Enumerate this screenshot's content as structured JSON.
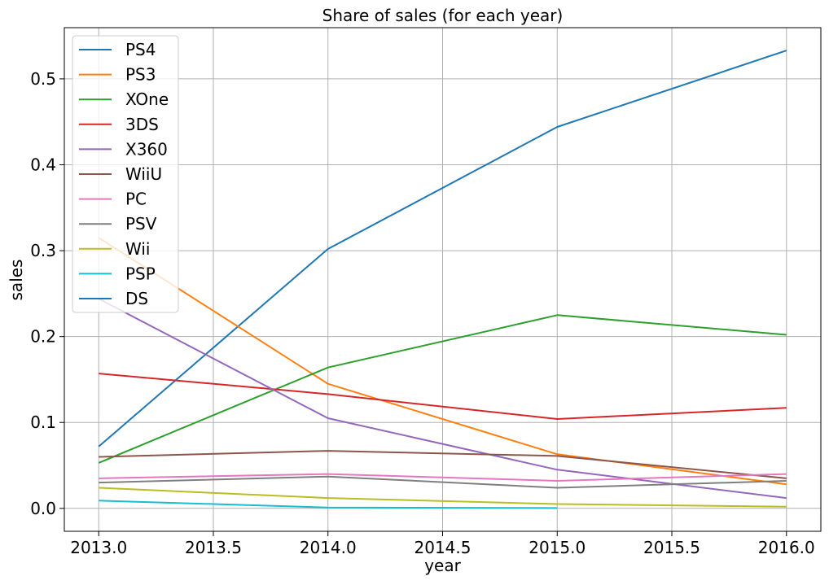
{
  "chart_data": {
    "type": "line",
    "title": "Share of sales (for each year)",
    "xlabel": "year",
    "ylabel": "sales",
    "xlim": [
      2012.85,
      2016.15
    ],
    "ylim": [
      -0.0267,
      0.5596
    ],
    "x_ticks": [
      "2013.0",
      "2013.5",
      "2014.0",
      "2014.5",
      "2015.0",
      "2015.5",
      "2016.0"
    ],
    "y_ticks": [
      "0.0",
      "0.1",
      "0.2",
      "0.3",
      "0.4",
      "0.5"
    ],
    "grid": true,
    "legend_position": "upper-left",
    "series": [
      {
        "name": "PS4",
        "color": "#1f77b4",
        "x": [
          2013,
          2014,
          2015,
          2016
        ],
        "values": [
          0.072,
          0.302,
          0.444,
          0.533
        ]
      },
      {
        "name": "PS3",
        "color": "#ff7f0e",
        "x": [
          2013,
          2014,
          2015,
          2016
        ],
        "values": [
          0.315,
          0.145,
          0.063,
          0.028
        ]
      },
      {
        "name": "XOne",
        "color": "#2ca02c",
        "x": [
          2013,
          2014,
          2015,
          2016
        ],
        "values": [
          0.053,
          0.164,
          0.225,
          0.202
        ]
      },
      {
        "name": "3DS",
        "color": "#d62728",
        "x": [
          2013,
          2014,
          2015,
          2016
        ],
        "values": [
          0.157,
          0.133,
          0.104,
          0.117
        ]
      },
      {
        "name": "X360",
        "color": "#9467bd",
        "x": [
          2013,
          2014,
          2015,
          2016
        ],
        "values": [
          0.244,
          0.105,
          0.045,
          0.012
        ]
      },
      {
        "name": "WiiU",
        "color": "#8c564b",
        "x": [
          2013,
          2014,
          2015,
          2016
        ],
        "values": [
          0.06,
          0.067,
          0.061,
          0.035
        ]
      },
      {
        "name": "PC",
        "color": "#e377c2",
        "x": [
          2013,
          2014,
          2015,
          2016
        ],
        "values": [
          0.035,
          0.04,
          0.032,
          0.04
        ]
      },
      {
        "name": "PSV",
        "color": "#7f7f7f",
        "x": [
          2013,
          2014,
          2015,
          2016
        ],
        "values": [
          0.03,
          0.037,
          0.024,
          0.032
        ]
      },
      {
        "name": "Wii",
        "color": "#bcbd22",
        "x": [
          2013,
          2014,
          2015,
          2016
        ],
        "values": [
          0.024,
          0.012,
          0.005,
          0.002
        ]
      },
      {
        "name": "PSP",
        "color": "#17becf",
        "x": [
          2013,
          2014,
          2015
        ],
        "values": [
          0.009,
          0.001,
          0.0004
        ]
      },
      {
        "name": "DS",
        "color": "#1f77b4",
        "x": [
          2013
        ],
        "values": [
          0.001
        ]
      }
    ]
  }
}
